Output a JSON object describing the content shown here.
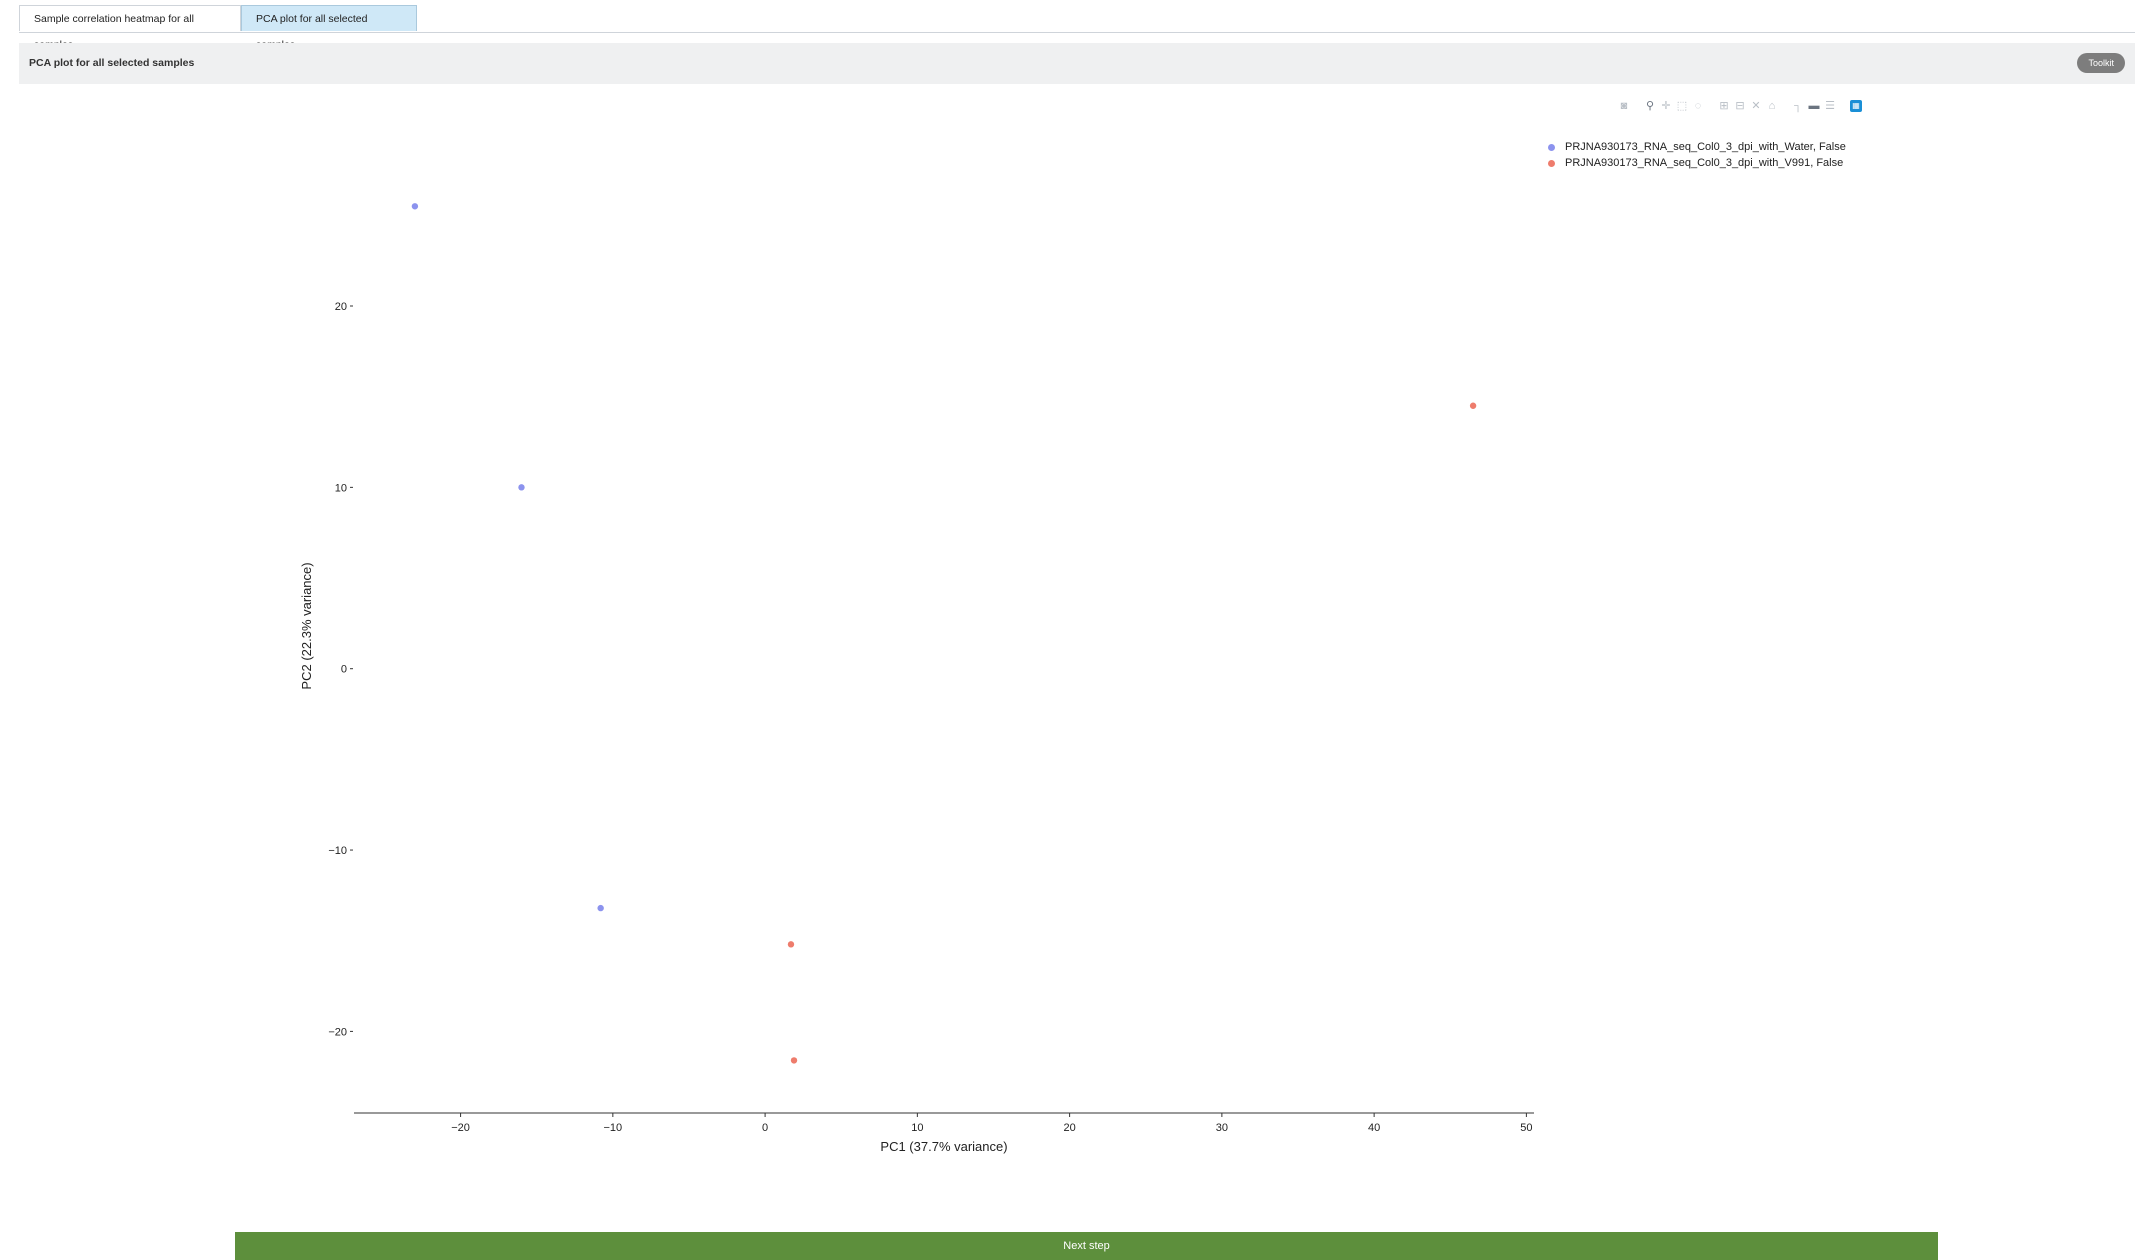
{
  "tabs": [
    {
      "label": "Sample correlation heatmap for all samples",
      "active": false
    },
    {
      "label": "PCA plot for all selected samples",
      "active": true
    }
  ],
  "panel": {
    "title": "PCA plot for all selected samples",
    "toolkit_label": "Toolkit"
  },
  "modebar": {
    "icons": [
      "camera-icon",
      "zoom-icon",
      "pan-icon",
      "box-select-icon",
      "lasso-select-icon",
      "zoom-in-icon",
      "zoom-out-icon",
      "autoscale-icon",
      "reset-axes-icon",
      "spike-lines-icon",
      "hover-closest-icon",
      "hover-compare-icon",
      "plotly-logo-icon"
    ]
  },
  "chart_data": {
    "type": "scatter",
    "xlabel": "PC1 (37.7% variance)",
    "ylabel": "PC2 (22.3% variance)",
    "xlim": [
      -27,
      50.5
    ],
    "ylim": [
      -24.5,
      27.5
    ],
    "xticks": [
      -20,
      -10,
      0,
      10,
      20,
      30,
      40,
      50
    ],
    "yticks": [
      -20,
      -10,
      0,
      10,
      20
    ],
    "grid": false,
    "legend_position": "top-right",
    "series": [
      {
        "name": "PRJNA930173_RNA_seq_Col0_3_dpi_with_Water, False",
        "color": "#8c93ee",
        "points": [
          [
            -23,
            25.5
          ],
          [
            -16,
            10
          ],
          [
            -10.8,
            -13.2
          ]
        ]
      },
      {
        "name": "PRJNA930173_RNA_seq_Col0_3_dpi_with_V991, False",
        "color": "#ee7c6c",
        "points": [
          [
            46.5,
            14.5
          ],
          [
            1.7,
            -15.2
          ],
          [
            1.9,
            -21.6
          ]
        ]
      }
    ]
  },
  "footer": {
    "next_label": "Next step"
  }
}
